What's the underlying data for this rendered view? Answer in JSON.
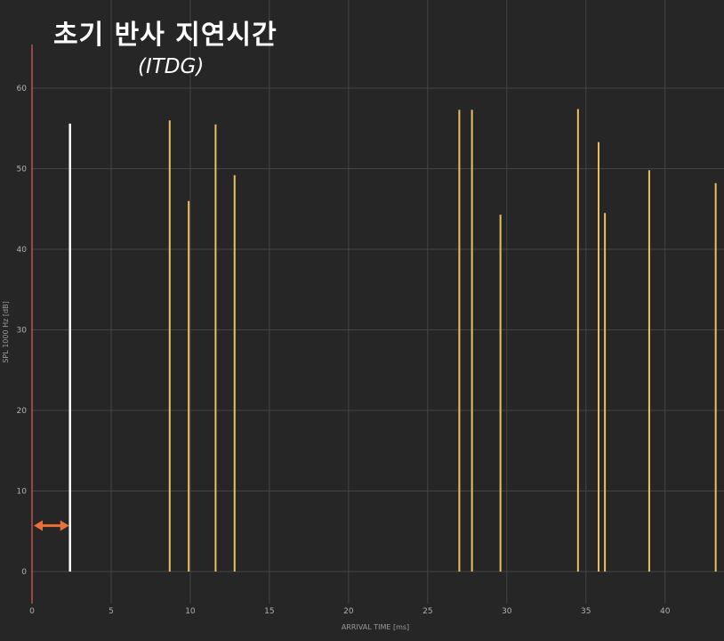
{
  "chart_data": {
    "type": "bar",
    "title": "초기 반사 지연시간",
    "subtitle": "(ITDG)",
    "xlabel": "ARRIVAL TIME [ms]",
    "ylabel": "SPL 1000 Hz [dB]",
    "xlim": [
      0,
      43.5
    ],
    "ylim": [
      0,
      60
    ],
    "xticks": [
      0,
      5,
      10,
      15,
      20,
      25,
      30,
      35,
      40
    ],
    "yticks": [
      0,
      10,
      20,
      30,
      40,
      50,
      60
    ],
    "grid": true,
    "direct_sound": {
      "x": 2.4,
      "y": 55.6,
      "color": "#ffffff"
    },
    "reflections": {
      "color": "#e8c060",
      "points": [
        {
          "x": 8.7,
          "y": 56.0
        },
        {
          "x": 9.9,
          "y": 46.0
        },
        {
          "x": 11.6,
          "y": 55.5
        },
        {
          "x": 12.8,
          "y": 49.2
        },
        {
          "x": 27.0,
          "y": 57.3
        },
        {
          "x": 27.8,
          "y": 57.3
        },
        {
          "x": 29.6,
          "y": 44.3
        },
        {
          "x": 34.5,
          "y": 57.4
        },
        {
          "x": 35.8,
          "y": 53.3
        },
        {
          "x": 36.2,
          "y": 44.5
        },
        {
          "x": 39.0,
          "y": 49.8
        },
        {
          "x": 43.2,
          "y": 48.2
        }
      ]
    },
    "itdg_arrow": {
      "from": 0,
      "to": 2.4,
      "y": 5.7,
      "color": "#e8703a"
    },
    "origin_line_color": "#e06060"
  }
}
